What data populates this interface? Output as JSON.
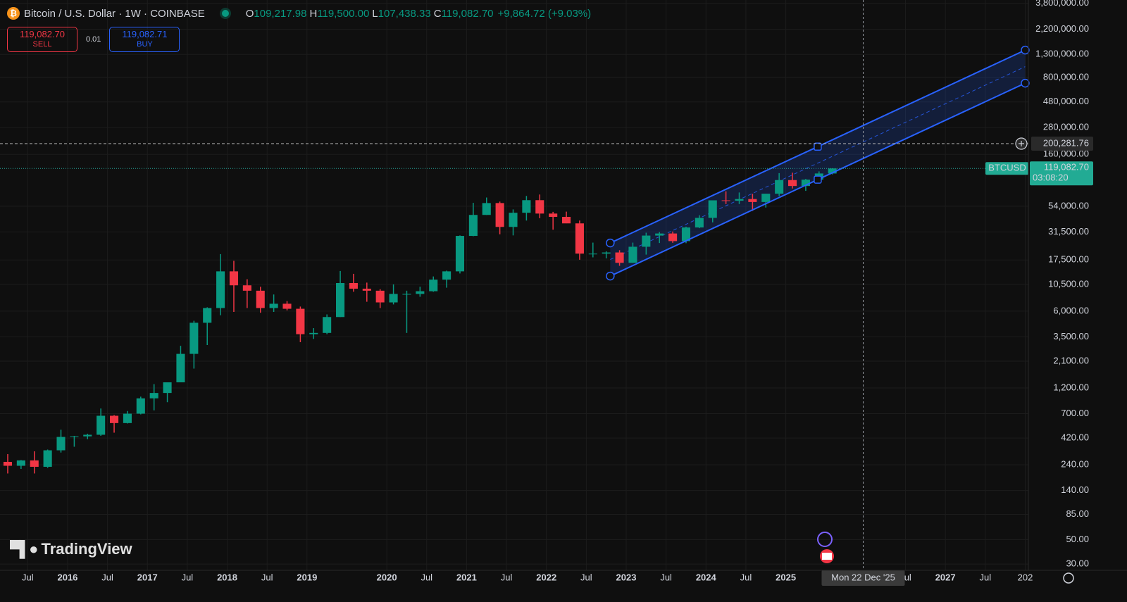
{
  "header": {
    "symbol_icon": "₿",
    "title": "Bitcoin / U.S. Dollar · 1W · COINBASE",
    "ohlc": [
      {
        "key": "O",
        "value": "109,217.98"
      },
      {
        "key": "H",
        "value": "119,500.00"
      },
      {
        "key": "L",
        "value": "107,438.33"
      },
      {
        "key": "C",
        "value": "119,082.70"
      }
    ],
    "change": "+9,864.72 (+9.03%)"
  },
  "trade": {
    "sell_price": "119,082.70",
    "sell": "SELL",
    "spread": "0.01",
    "buy_price": "119,082.71",
    "buy": "BUY"
  },
  "watermark": "TradingView",
  "chart_data": {
    "type": "candlestick",
    "log_scale": true,
    "grid": true,
    "up_color": "#089981",
    "down_color": "#f23645",
    "channel_color": "#2962ff",
    "xlim": [
      2015.153,
      2028.04
    ],
    "ylim": [
      26.3,
      4060000
    ],
    "xticks": [
      {
        "value": 2015.5,
        "label": "Jul"
      },
      2016,
      {
        "value": 2016.5,
        "label": "Jul"
      },
      2017,
      {
        "value": 2017.5,
        "label": "Jul"
      },
      2018,
      {
        "value": 2018.5,
        "label": "Jul"
      },
      2019,
      2020,
      {
        "value": 2020.5,
        "label": "Jul"
      },
      2021,
      {
        "value": 2021.5,
        "label": "Jul"
      },
      2022,
      {
        "value": 2022.5,
        "label": "Jul"
      },
      2023,
      {
        "value": 2023.5,
        "label": "Jul"
      },
      2024,
      {
        "value": 2024.5,
        "label": "Jul"
      },
      2025,
      {
        "value": 2026.5,
        "label": "Jul"
      },
      2027,
      {
        "value": 2027.5,
        "label": "Jul"
      },
      {
        "value": 2028,
        "label": "202"
      }
    ],
    "yticks": [
      {
        "value": 3800000,
        "label": "3,800,000.00"
      },
      {
        "value": 2200000,
        "label": "2,200,000.00"
      },
      {
        "value": 1300000,
        "label": "1,300,000.00"
      },
      {
        "value": 800000,
        "label": "800,000.00"
      },
      {
        "value": 480000,
        "label": "480,000.00"
      },
      {
        "value": 280000,
        "label": "280,000.00"
      },
      {
        "value": 160000,
        "label": "160,000.00"
      },
      {
        "value": 54000,
        "label": "54,000.00"
      },
      {
        "value": 31500,
        "label": "31,500.00"
      },
      {
        "value": 17500,
        "label": "17,500.00"
      },
      {
        "value": 10500,
        "label": "10,500.00"
      },
      {
        "value": 6000,
        "label": "6,000.00"
      },
      {
        "value": 3500,
        "label": "3,500.00"
      },
      {
        "value": 2100,
        "label": "2,100.00"
      },
      {
        "value": 1200,
        "label": "1,200.00"
      },
      {
        "value": 700,
        "label": "700.00"
      },
      {
        "value": 420,
        "label": "420.00"
      },
      {
        "value": 240,
        "label": "240.00"
      },
      {
        "value": 140,
        "label": "140.00"
      },
      {
        "value": 85,
        "label": "85.00"
      },
      {
        "value": 50,
        "label": "50.00"
      },
      {
        "value": 30,
        "label": "30.00"
      }
    ],
    "x": [
      "2015-03",
      "2015-05",
      "2015-07",
      "2015-09",
      "2015-11",
      "2016-01",
      "2016-03",
      "2016-05",
      "2016-07",
      "2016-09",
      "2016-11",
      "2017-01",
      "2017-03",
      "2017-05",
      "2017-07",
      "2017-09",
      "2017-11",
      "2018-01",
      "2018-03",
      "2018-05",
      "2018-07",
      "2018-09",
      "2018-11",
      "2019-01",
      "2019-03",
      "2019-05",
      "2019-07",
      "2019-09",
      "2019-11",
      "2020-01",
      "2020-03",
      "2020-05",
      "2020-07",
      "2020-09",
      "2020-11",
      "2021-01",
      "2021-03",
      "2021-05",
      "2021-07",
      "2021-09",
      "2021-11",
      "2022-01",
      "2022-03",
      "2022-05",
      "2022-07",
      "2022-09",
      "2022-11",
      "2023-01",
      "2023-03",
      "2023-05",
      "2023-07",
      "2023-09",
      "2023-11",
      "2024-01",
      "2024-03",
      "2024-05",
      "2024-07",
      "2024-09",
      "2024-11",
      "2025-01",
      "2025-03",
      "2025-05",
      "2025-07"
    ],
    "open": [
      255,
      235,
      263,
      230,
      325,
      430,
      435,
      450,
      670,
      575,
      700,
      965,
      1080,
      1350,
      2450,
      4700,
      6400,
      13800,
      10300,
      9200,
      6400,
      7000,
      6300,
      3700,
      3800,
      5300,
      10800,
      9600,
      9200,
      7200,
      8600,
      8600,
      9100,
      11600,
      13800,
      29000,
      45000,
      57700,
      35000,
      47100,
      61300,
      46300,
      43200,
      37700,
      20000,
      20000,
      20500,
      16500,
      23100,
      29200,
      30500,
      26000,
      34600,
      42300,
      61100,
      60600,
      62800,
      59000,
      70200,
      93400,
      82500,
      94200,
      107200
    ],
    "high": [
      300,
      265,
      318,
      330,
      500,
      440,
      460,
      780,
      680,
      740,
      1000,
      1300,
      1350,
      2900,
      4900,
      6500,
      19800,
      17200,
      11700,
      9990,
      8500,
      7400,
      6600,
      4200,
      5600,
      13900,
      13100,
      10900,
      9500,
      10500,
      9200,
      10000,
      12400,
      14000,
      29300,
      58000,
      64800,
      59500,
      50500,
      67000,
      69000,
      48000,
      48200,
      40000,
      25200,
      21000,
      21500,
      25200,
      31000,
      31400,
      31800,
      35200,
      44700,
      49000,
      73800,
      72000,
      70000,
      70000,
      108000,
      109000,
      95700,
      112000,
      119500
    ],
    "low": [
      200,
      220,
      200,
      225,
      310,
      350,
      410,
      440,
      470,
      570,
      690,
      750,
      890,
      1350,
      1800,
      2950,
      5500,
      5900,
      6400,
      5800,
      5900,
      6100,
      3130,
      3350,
      3700,
      5300,
      9000,
      7300,
      6400,
      6900,
      3800,
      8100,
      9000,
      9800,
      13200,
      28800,
      45000,
      30000,
      29300,
      40000,
      42000,
      33000,
      37800,
      17600,
      18500,
      18100,
      15500,
      16500,
      19600,
      25000,
      25100,
      24900,
      34100,
      38500,
      56500,
      56500,
      49000,
      52500,
      66800,
      78300,
      74500,
      93400,
      105100
    ],
    "close": [
      235,
      263,
      230,
      325,
      430,
      435,
      450,
      670,
      575,
      700,
      965,
      1080,
      1350,
      2450,
      4700,
      6400,
      13800,
      10300,
      9200,
      6400,
      7000,
      6300,
      3700,
      3800,
      5300,
      10800,
      9600,
      9200,
      7200,
      8600,
      8600,
      9100,
      11600,
      13800,
      29000,
      45000,
      57700,
      35000,
      47100,
      61300,
      46300,
      43200,
      37700,
      20000,
      20000,
      20500,
      16500,
      23100,
      29200,
      30500,
      26000,
      34600,
      42300,
      61100,
      60600,
      62800,
      59000,
      70200,
      93400,
      82500,
      94200,
      107200,
      119082.7
    ],
    "price_line": {
      "label": "BTCUSD",
      "value": 119082.7,
      "value_label": "119,082.70",
      "countdown": "03:08:20"
    },
    "horizontal_line": {
      "value": 200281.76,
      "value_label": "200,281.76"
    },
    "crosshair": {
      "x": 2025.97,
      "label": "Mon 22 Dec '25"
    },
    "channel": {
      "x": [
        2022.8,
        2025.4,
        2028.0
      ],
      "upper": [
        25000,
        188000,
        1422000
      ],
      "lower": [
        12500,
        94300,
        711000
      ]
    }
  }
}
